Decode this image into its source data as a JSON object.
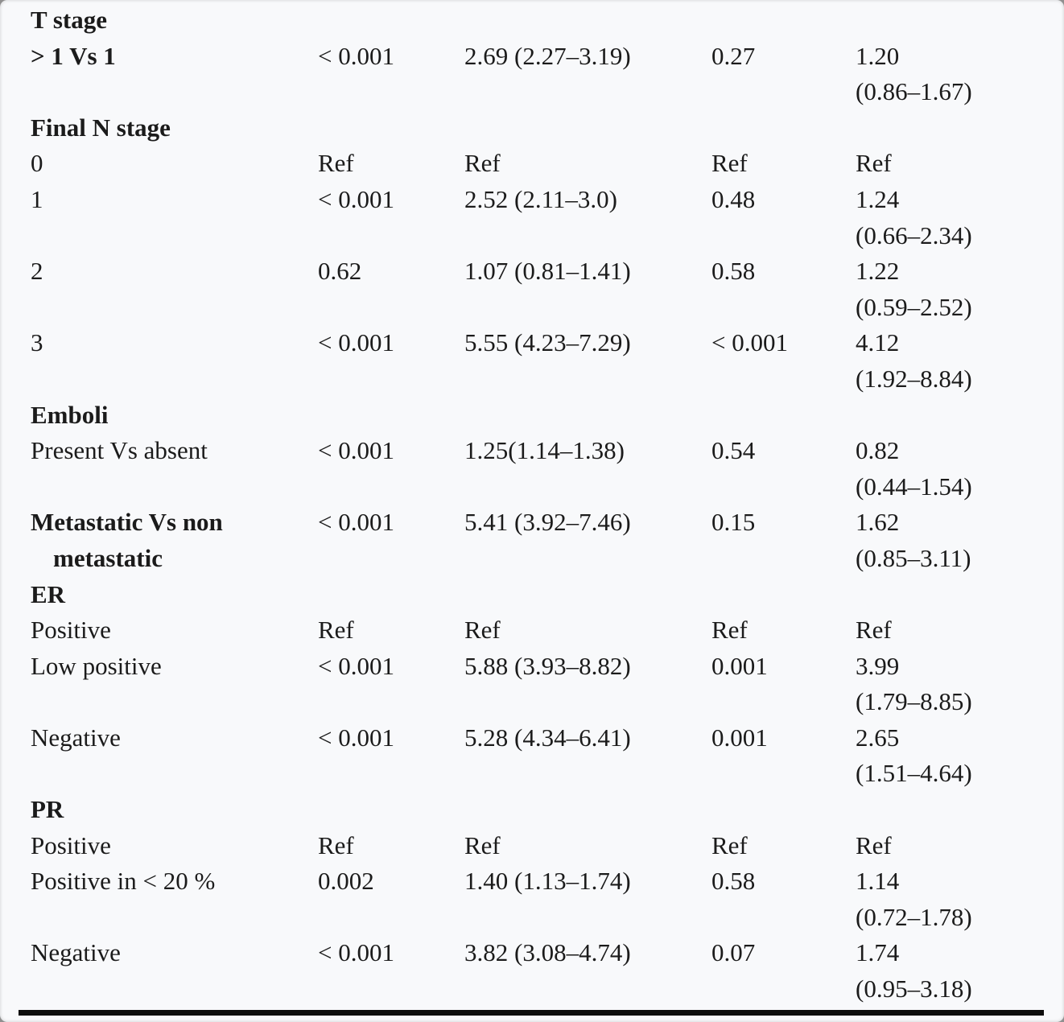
{
  "table": {
    "columns": [
      "variable",
      "p_value_univariate",
      "estimate_ci_univariate",
      "p_value_multivariate",
      "estimate_ci_multivariate"
    ],
    "rows": [
      {
        "type": "section",
        "label": "T stage"
      },
      {
        "type": "data",
        "bold": true,
        "label": "> 1 Vs 1",
        "p1": "< 0.001",
        "v1": "2.69 (2.27–3.19)",
        "p2": "0.27",
        "v2": "1.20",
        "ci2": "(0.86–1.67)"
      },
      {
        "type": "section",
        "label": "Final N stage"
      },
      {
        "type": "data",
        "bold": false,
        "label": "0",
        "p1": "Ref",
        "v1": "Ref",
        "p2": "Ref",
        "v2": "Ref",
        "ci2": ""
      },
      {
        "type": "data",
        "bold": false,
        "label": "1",
        "p1": "< 0.001",
        "v1": "2.52 (2.11–3.0)",
        "p2": "0.48",
        "v2": "1.24",
        "ci2": "(0.66–2.34)"
      },
      {
        "type": "data",
        "bold": false,
        "label": "2",
        "p1": "0.62",
        "v1": "1.07 (0.81–1.41)",
        "p2": "0.58",
        "v2": "1.22",
        "ci2": "(0.59–2.52)"
      },
      {
        "type": "data",
        "bold": false,
        "label": "3",
        "p1": "< 0.001",
        "v1": "5.55 (4.23–7.29)",
        "p2": "< 0.001",
        "v2": "4.12",
        "ci2": "(1.92–8.84)"
      },
      {
        "type": "section",
        "label": "Emboli"
      },
      {
        "type": "data",
        "bold": false,
        "label": "Present Vs absent",
        "p1": "< 0.001",
        "v1": "1.25(1.14–1.38)",
        "p2": "0.54",
        "v2": "0.82",
        "ci2": "(0.44–1.54)"
      },
      {
        "type": "data",
        "bold": true,
        "label": "Metastatic Vs non metastatic",
        "p1": "< 0.001",
        "v1": "5.41 (3.92–7.46)",
        "p2": "0.15",
        "v2": "1.62",
        "ci2": "(0.85–3.11)"
      },
      {
        "type": "section",
        "label": "ER"
      },
      {
        "type": "data",
        "bold": false,
        "label": "Positive",
        "p1": "Ref",
        "v1": "Ref",
        "p2": "Ref",
        "v2": "Ref",
        "ci2": ""
      },
      {
        "type": "data",
        "bold": false,
        "label": "Low positive",
        "p1": "< 0.001",
        "v1": "5.88 (3.93–8.82)",
        "p2": "0.001",
        "v2": "3.99",
        "ci2": "(1.79–8.85)"
      },
      {
        "type": "data",
        "bold": false,
        "label": "Negative",
        "p1": "< 0.001",
        "v1": "5.28 (4.34–6.41)",
        "p2": "0.001",
        "v2": "2.65",
        "ci2": "(1.51–4.64)"
      },
      {
        "type": "section",
        "label": "PR"
      },
      {
        "type": "data",
        "bold": false,
        "label": "Positive",
        "p1": "Ref",
        "v1": "Ref",
        "p2": "Ref",
        "v2": "Ref",
        "ci2": ""
      },
      {
        "type": "data",
        "bold": false,
        "label": "Positive in < 20 %",
        "p1": "0.002",
        "v1": "1.40 (1.13–1.74)",
        "p2": "0.58",
        "v2": "1.14",
        "ci2": "(0.72–1.78)"
      },
      {
        "type": "data",
        "bold": false,
        "label": "Negative",
        "p1": "< 0.001",
        "v1": "3.82 (3.08–4.74)",
        "p2": "0.07",
        "v2": "1.74",
        "ci2": "(0.95–3.18)"
      }
    ],
    "colors": {
      "page_background": "#f8f9fb",
      "text": "#1b1b1b",
      "rule": "#0d0d0d"
    }
  }
}
